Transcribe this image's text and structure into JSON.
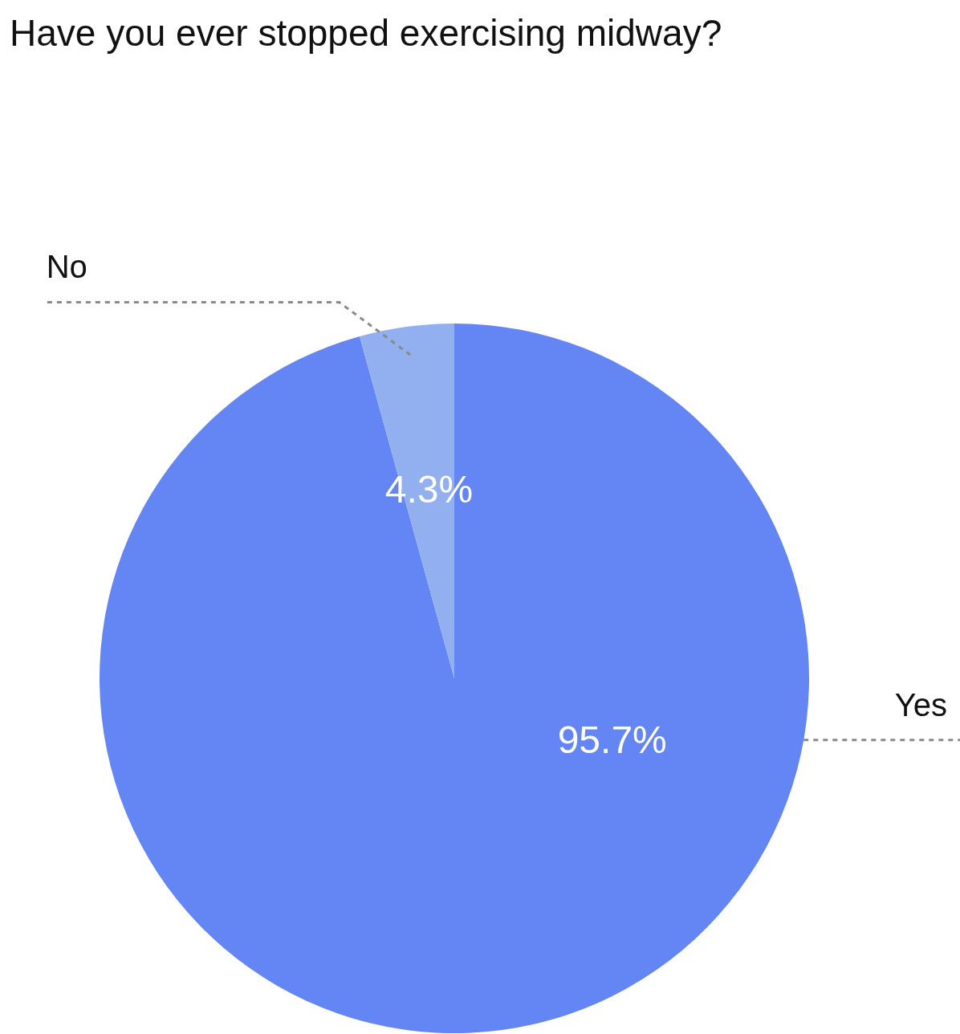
{
  "chart_data": {
    "type": "pie",
    "title": "Have you ever stopped exercising midway?",
    "categories": [
      "Yes",
      "No"
    ],
    "values": [
      95.7,
      4.3
    ],
    "value_labels": [
      "95.7%",
      "4.3%"
    ],
    "colors": [
      "#6486f4",
      "#92aff0"
    ]
  }
}
